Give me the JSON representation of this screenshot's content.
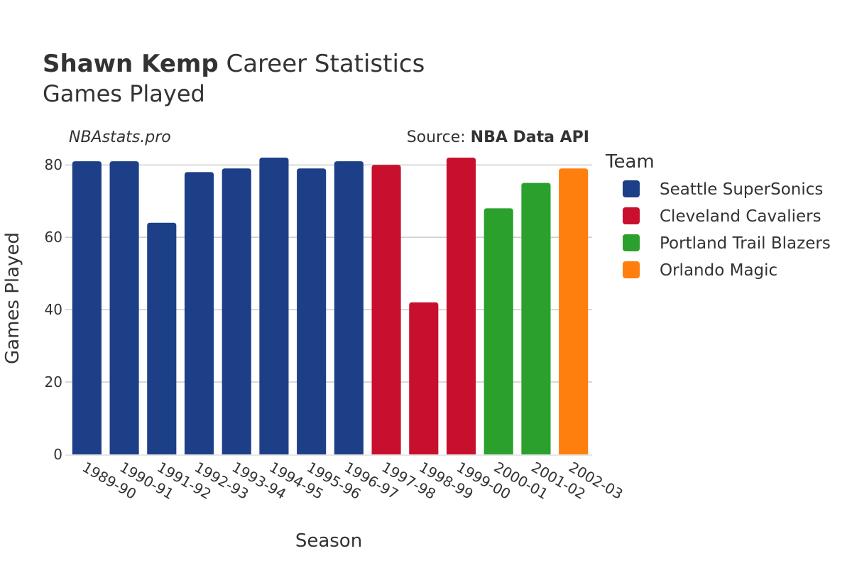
{
  "header": {
    "player_name": "Shawn Kemp",
    "title_suffix": " Career Statistics",
    "subtitle": "Games Played"
  },
  "watermark": "NBAstats.pro",
  "source": {
    "prefix": "Source: ",
    "name": "NBA Data API"
  },
  "colors": {
    "Seattle SuperSonics": "#1c3f87",
    "Cleveland Cavaliers": "#c8102e",
    "Portland Trail Blazers": "#2ca02c",
    "Orlando Magic": "#ff7f0e"
  },
  "legend": {
    "title": "Team",
    "items": [
      {
        "label": "Seattle SuperSonics"
      },
      {
        "label": "Cleveland Cavaliers"
      },
      {
        "label": "Portland Trail Blazers"
      },
      {
        "label": "Orlando Magic"
      }
    ]
  },
  "chart_data": {
    "type": "bar",
    "xlabel": "Season",
    "ylabel": "Games Played",
    "ylim": [
      0,
      82
    ],
    "yticks": [
      0,
      20,
      40,
      60,
      80
    ],
    "grid": true,
    "legend_position": "right",
    "categories": [
      "1989-90",
      "1990-91",
      "1991-92",
      "1992-93",
      "1993-94",
      "1994-95",
      "1995-96",
      "1996-97",
      "1997-98",
      "1998-99",
      "1999-00",
      "2000-01",
      "2001-02",
      "2002-03"
    ],
    "values": [
      81,
      81,
      64,
      78,
      79,
      82,
      79,
      81,
      80,
      42,
      82,
      68,
      75,
      79
    ],
    "teams": [
      "Seattle SuperSonics",
      "Seattle SuperSonics",
      "Seattle SuperSonics",
      "Seattle SuperSonics",
      "Seattle SuperSonics",
      "Seattle SuperSonics",
      "Seattle SuperSonics",
      "Seattle SuperSonics",
      "Cleveland Cavaliers",
      "Cleveland Cavaliers",
      "Cleveland Cavaliers",
      "Portland Trail Blazers",
      "Portland Trail Blazers",
      "Orlando Magic"
    ]
  }
}
